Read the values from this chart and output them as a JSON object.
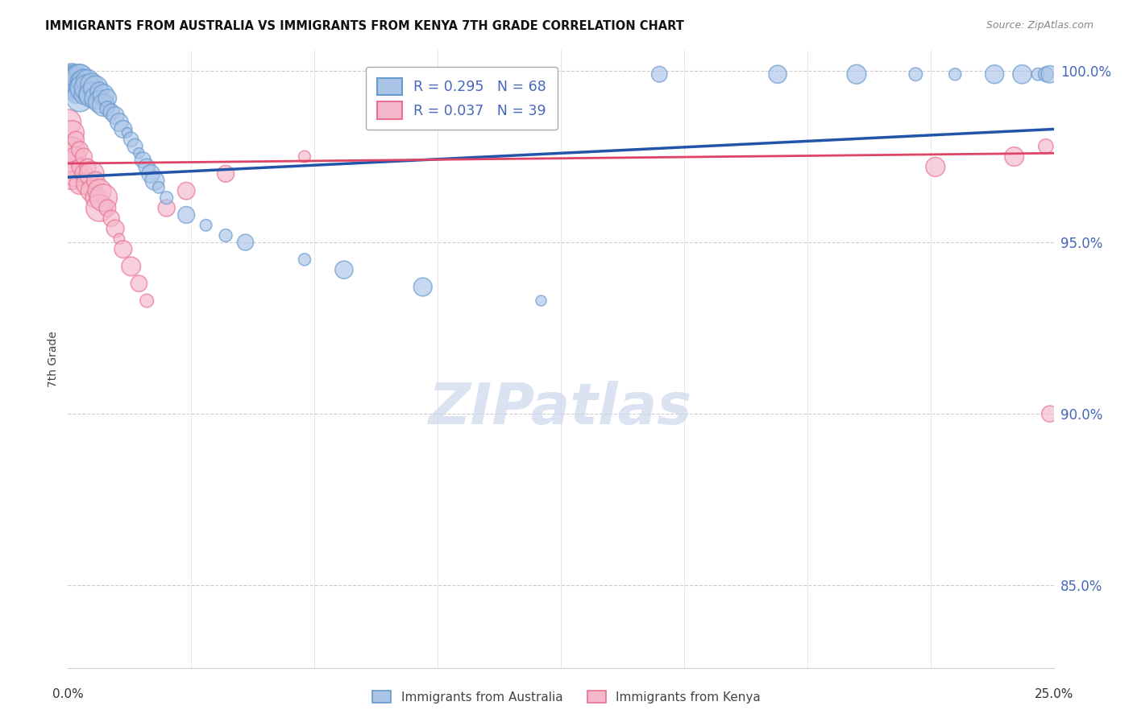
{
  "title": "IMMIGRANTS FROM AUSTRALIA VS IMMIGRANTS FROM KENYA 7TH GRADE CORRELATION CHART",
  "source": "Source: ZipAtlas.com",
  "ylabel": "7th Grade",
  "blue_R": 0.295,
  "blue_N": 68,
  "pink_R": 0.037,
  "pink_N": 39,
  "blue_color_face": "#aac4e8",
  "blue_color_edge": "#6699cc",
  "pink_color_face": "#f5b8cb",
  "pink_color_edge": "#e87090",
  "blue_line_color": "#2255aa",
  "pink_line_color": "#dd4466",
  "legend_label_blue": "Immigrants from Australia",
  "legend_label_pink": "Immigrants from Kenya",
  "x_min": 0.0,
  "x_max": 0.25,
  "y_min": 0.826,
  "y_max": 1.006,
  "y_ticks": [
    0.85,
    0.9,
    0.95,
    1.0
  ],
  "y_tick_labels": [
    "85.0%",
    "90.0%",
    "95.0%",
    "100.0%"
  ],
  "blue_line_x0": 0.0,
  "blue_line_y0": 0.969,
  "blue_line_x1": 0.25,
  "blue_line_y1": 0.983,
  "pink_line_x0": 0.0,
  "pink_line_y0": 0.973,
  "pink_line_x1": 0.25,
  "pink_line_y1": 0.976,
  "blue_x": [
    0.0,
    0.0,
    0.001,
    0.001,
    0.001,
    0.001,
    0.001,
    0.001,
    0.002,
    0.002,
    0.002,
    0.002,
    0.002,
    0.002,
    0.003,
    0.003,
    0.003,
    0.003,
    0.003,
    0.004,
    0.004,
    0.004,
    0.004,
    0.005,
    0.005,
    0.005,
    0.006,
    0.006,
    0.007,
    0.007,
    0.008,
    0.008,
    0.009,
    0.009,
    0.01,
    0.01,
    0.011,
    0.012,
    0.013,
    0.014,
    0.015,
    0.016,
    0.017,
    0.018,
    0.019,
    0.02,
    0.021,
    0.022,
    0.023,
    0.025,
    0.03,
    0.035,
    0.04,
    0.045,
    0.06,
    0.07,
    0.09,
    0.12,
    0.15,
    0.18,
    0.2,
    0.215,
    0.225,
    0.235,
    0.242,
    0.246,
    0.248,
    0.249
  ],
  "blue_y": [
    0.999,
    0.998,
    0.999,
    0.998,
    0.997,
    0.996,
    0.995,
    0.994,
    0.999,
    0.998,
    0.997,
    0.996,
    0.995,
    0.993,
    0.999,
    0.998,
    0.997,
    0.995,
    0.992,
    0.998,
    0.997,
    0.995,
    0.993,
    0.997,
    0.995,
    0.993,
    0.996,
    0.993,
    0.995,
    0.992,
    0.994,
    0.991,
    0.993,
    0.99,
    0.992,
    0.989,
    0.988,
    0.987,
    0.985,
    0.983,
    0.982,
    0.98,
    0.978,
    0.976,
    0.974,
    0.972,
    0.97,
    0.968,
    0.966,
    0.963,
    0.958,
    0.955,
    0.952,
    0.95,
    0.945,
    0.942,
    0.937,
    0.933,
    0.999,
    0.999,
    0.999,
    0.999,
    0.999,
    0.999,
    0.999,
    0.999,
    0.999,
    0.999
  ],
  "pink_x": [
    0.0,
    0.0,
    0.001,
    0.001,
    0.001,
    0.001,
    0.002,
    0.002,
    0.002,
    0.003,
    0.003,
    0.003,
    0.004,
    0.004,
    0.005,
    0.005,
    0.006,
    0.006,
    0.007,
    0.007,
    0.008,
    0.008,
    0.009,
    0.01,
    0.011,
    0.012,
    0.013,
    0.014,
    0.016,
    0.018,
    0.02,
    0.025,
    0.03,
    0.04,
    0.06,
    0.22,
    0.24,
    0.248,
    0.249
  ],
  "pink_y": [
    0.985,
    0.978,
    0.982,
    0.977,
    0.973,
    0.968,
    0.98,
    0.975,
    0.97,
    0.977,
    0.972,
    0.967,
    0.975,
    0.97,
    0.972,
    0.967,
    0.97,
    0.965,
    0.968,
    0.963,
    0.965,
    0.96,
    0.963,
    0.96,
    0.957,
    0.954,
    0.951,
    0.948,
    0.943,
    0.938,
    0.933,
    0.96,
    0.965,
    0.97,
    0.975,
    0.972,
    0.975,
    0.978,
    0.9
  ],
  "watermark_text": "ZIPatlas",
  "watermark_color": "#ccd8ee",
  "bg_color": "#ffffff"
}
